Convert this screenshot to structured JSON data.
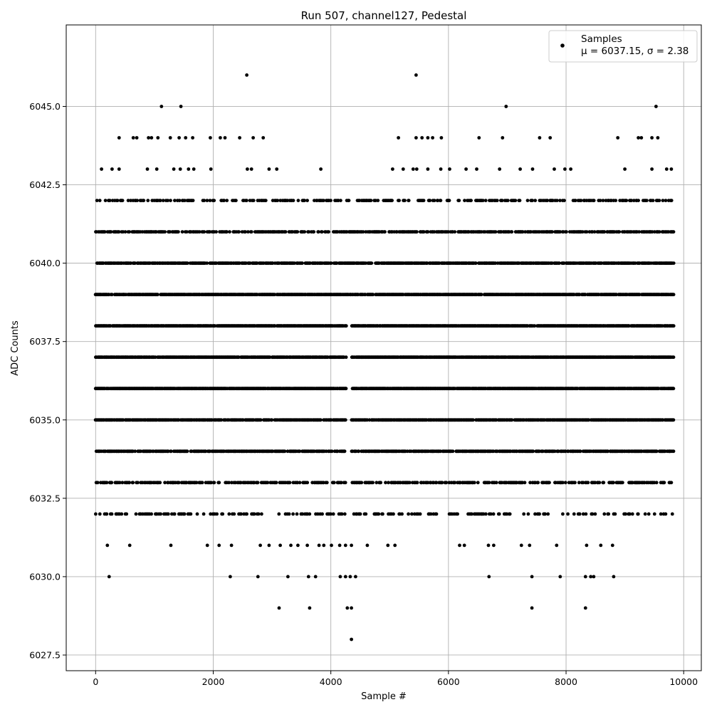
{
  "chart_data": {
    "type": "scatter",
    "title": "Run 507, channel127, Pedestal",
    "xlabel": "Sample #",
    "ylabel": "ADC Counts",
    "xlim": [
      -500,
      10300
    ],
    "ylim": [
      6027.0,
      6047.6
    ],
    "xticks": [
      0,
      2000,
      4000,
      6000,
      8000,
      10000
    ],
    "xtick_labels": [
      "0",
      "2000",
      "4000",
      "6000",
      "8000",
      "10000"
    ],
    "yticks": [
      6027.5,
      6030.0,
      6032.5,
      6035.0,
      6037.5,
      6040.0,
      6042.5,
      6045.0
    ],
    "ytick_labels": [
      "6027.5",
      "6030.0",
      "6032.5",
      "6035.0",
      "6037.5",
      "6040.0",
      "6042.5",
      "6045.0"
    ],
    "grid": true,
    "legend_position": "top-right",
    "point_color": "#000000",
    "series": [
      {
        "name": "Samples",
        "x_range": [
          0,
          9830
        ],
        "x_gap": [
          4270,
          4350
        ],
        "gap_level_max": 6038,
        "levels": [
          {
            "y": 6036,
            "density": 0.92
          },
          {
            "y": 6037,
            "density": 0.92
          },
          {
            "y": 6038,
            "density": 0.9
          },
          {
            "y": 6035,
            "density": 0.85
          },
          {
            "y": 6039,
            "density": 0.85
          },
          {
            "y": 6040,
            "density": 0.78
          },
          {
            "y": 6034,
            "density": 0.7
          },
          {
            "y": 6041,
            "density": 0.55
          },
          {
            "y": 6033,
            "density": 0.48
          },
          {
            "y": 6042,
            "density": 0.35
          },
          {
            "y": 6032,
            "density": 0.22
          }
        ],
        "sparse_points": [
          [
            1120,
            6045
          ],
          [
            1450,
            6045
          ],
          [
            6980,
            6045
          ],
          [
            9530,
            6045
          ],
          [
            2570,
            6046
          ],
          [
            5450,
            6046
          ],
          [
            400,
            6044
          ],
          [
            640,
            6044
          ],
          [
            700,
            6044
          ],
          [
            900,
            6044
          ],
          [
            950,
            6044
          ],
          [
            1060,
            6044
          ],
          [
            1270,
            6044
          ],
          [
            1420,
            6044
          ],
          [
            1530,
            6044
          ],
          [
            1650,
            6044
          ],
          [
            1950,
            6044
          ],
          [
            2120,
            6044
          ],
          [
            2200,
            6044
          ],
          [
            2450,
            6044
          ],
          [
            2680,
            6044
          ],
          [
            2850,
            6044
          ],
          [
            5150,
            6044
          ],
          [
            5450,
            6044
          ],
          [
            5550,
            6044
          ],
          [
            5650,
            6044
          ],
          [
            5730,
            6044
          ],
          [
            5880,
            6044
          ],
          [
            6520,
            6044
          ],
          [
            6920,
            6044
          ],
          [
            7550,
            6044
          ],
          [
            7730,
            6044
          ],
          [
            8880,
            6044
          ],
          [
            9230,
            6044
          ],
          [
            9280,
            6044
          ],
          [
            9460,
            6044
          ],
          [
            9560,
            6044
          ],
          [
            100,
            6043
          ],
          [
            280,
            6043
          ],
          [
            400,
            6043
          ],
          [
            880,
            6043
          ],
          [
            1040,
            6043
          ],
          [
            1330,
            6043
          ],
          [
            1440,
            6043
          ],
          [
            1580,
            6043
          ],
          [
            1670,
            6043
          ],
          [
            1960,
            6043
          ],
          [
            2580,
            6043
          ],
          [
            2650,
            6043
          ],
          [
            2950,
            6043
          ],
          [
            3080,
            6043
          ],
          [
            3830,
            6043
          ],
          [
            5050,
            6043
          ],
          [
            5230,
            6043
          ],
          [
            5400,
            6043
          ],
          [
            5460,
            6043
          ],
          [
            5650,
            6043
          ],
          [
            5870,
            6043
          ],
          [
            6020,
            6043
          ],
          [
            6300,
            6043
          ],
          [
            6480,
            6043
          ],
          [
            6870,
            6043
          ],
          [
            7220,
            6043
          ],
          [
            7430,
            6043
          ],
          [
            7800,
            6043
          ],
          [
            7980,
            6043
          ],
          [
            8080,
            6043
          ],
          [
            9000,
            6043
          ],
          [
            9460,
            6043
          ],
          [
            9710,
            6043
          ],
          [
            9790,
            6043
          ],
          [
            200,
            6031
          ],
          [
            580,
            6031
          ],
          [
            1280,
            6031
          ],
          [
            1900,
            6031
          ],
          [
            2100,
            6031
          ],
          [
            2310,
            6031
          ],
          [
            2800,
            6031
          ],
          [
            2950,
            6031
          ],
          [
            3140,
            6031
          ],
          [
            3320,
            6031
          ],
          [
            3440,
            6031
          ],
          [
            3600,
            6031
          ],
          [
            3800,
            6031
          ],
          [
            3880,
            6031
          ],
          [
            4010,
            6031
          ],
          [
            4150,
            6031
          ],
          [
            4250,
            6031
          ],
          [
            4350,
            6031
          ],
          [
            4620,
            6031
          ],
          [
            4970,
            6031
          ],
          [
            5090,
            6031
          ],
          [
            6190,
            6031
          ],
          [
            6270,
            6031
          ],
          [
            6680,
            6031
          ],
          [
            6770,
            6031
          ],
          [
            7240,
            6031
          ],
          [
            7380,
            6031
          ],
          [
            7840,
            6031
          ],
          [
            8350,
            6031
          ],
          [
            8590,
            6031
          ],
          [
            8790,
            6031
          ],
          [
            230,
            6030
          ],
          [
            2290,
            6030
          ],
          [
            2760,
            6030
          ],
          [
            3270,
            6030
          ],
          [
            3620,
            6030
          ],
          [
            3740,
            6030
          ],
          [
            4160,
            6030
          ],
          [
            4250,
            6030
          ],
          [
            4330,
            6030
          ],
          [
            4420,
            6030
          ],
          [
            6690,
            6030
          ],
          [
            7420,
            6030
          ],
          [
            7900,
            6030
          ],
          [
            8330,
            6030
          ],
          [
            8420,
            6030
          ],
          [
            8470,
            6030
          ],
          [
            8810,
            6030
          ],
          [
            3120,
            6029
          ],
          [
            3640,
            6029
          ],
          [
            4280,
            6029
          ],
          [
            4350,
            6029
          ],
          [
            7420,
            6029
          ],
          [
            8330,
            6029
          ],
          [
            4350,
            6028
          ]
        ]
      }
    ],
    "legend": {
      "label": "Samples",
      "stats": "μ = 6037.15, σ = 2.38"
    }
  }
}
